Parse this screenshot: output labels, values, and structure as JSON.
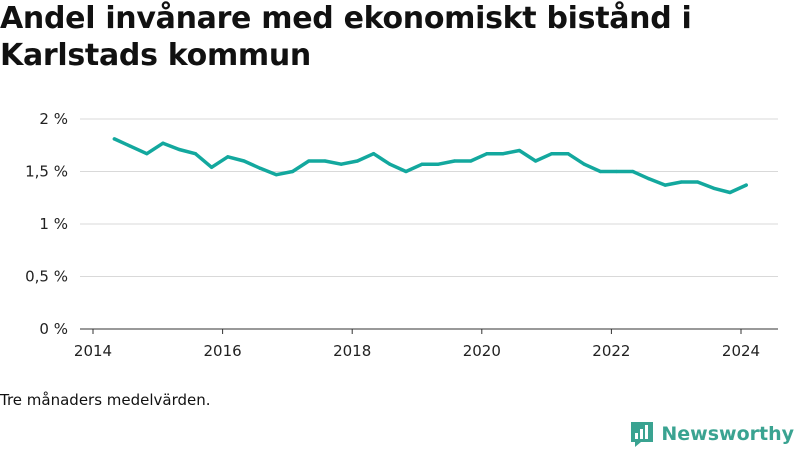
{
  "title": "Andel invånare med ekonomiskt bistånd i Karlstads kommun",
  "note": "Tre månaders medelvärden.",
  "brand": {
    "name": "Newsworthy",
    "color": "#3aa391"
  },
  "colors": {
    "line": "#13a89e",
    "grid": "#d9d9d9",
    "axis": "#333333"
  },
  "chart_data": {
    "type": "line",
    "title": "Andel invånare med ekonomiskt bistånd i Karlstads kommun",
    "xlabel": "",
    "ylabel": "",
    "xlim": [
      2014,
      2024.75
    ],
    "ylim": [
      0,
      2
    ],
    "x_ticks": [
      2014,
      2016,
      2018,
      2020,
      2022,
      2024
    ],
    "y_ticks": [
      {
        "value": 0,
        "label": "0 %"
      },
      {
        "value": 0.5,
        "label": "0,5 %"
      },
      {
        "value": 1,
        "label": "1 %"
      },
      {
        "value": 1.5,
        "label": "1,5 %"
      },
      {
        "value": 2,
        "label": "2 %"
      }
    ],
    "grid": true,
    "series": [
      {
        "values": [
          [
            2014.33,
            1.81
          ],
          [
            2014.58,
            1.74
          ],
          [
            2014.83,
            1.67
          ],
          [
            2015.08,
            1.77
          ],
          [
            2015.33,
            1.71
          ],
          [
            2015.58,
            1.67
          ],
          [
            2015.83,
            1.54
          ],
          [
            2016.08,
            1.64
          ],
          [
            2016.33,
            1.6
          ],
          [
            2016.58,
            1.53
          ],
          [
            2016.83,
            1.47
          ],
          [
            2017.08,
            1.5
          ],
          [
            2017.33,
            1.6
          ],
          [
            2017.58,
            1.6
          ],
          [
            2017.83,
            1.57
          ],
          [
            2018.08,
            1.6
          ],
          [
            2018.33,
            1.67
          ],
          [
            2018.58,
            1.57
          ],
          [
            2018.83,
            1.5
          ],
          [
            2019.08,
            1.57
          ],
          [
            2019.33,
            1.57
          ],
          [
            2019.58,
            1.6
          ],
          [
            2019.83,
            1.6
          ],
          [
            2020.08,
            1.67
          ],
          [
            2020.33,
            1.67
          ],
          [
            2020.58,
            1.7
          ],
          [
            2020.83,
            1.6
          ],
          [
            2021.08,
            1.67
          ],
          [
            2021.33,
            1.67
          ],
          [
            2021.58,
            1.57
          ],
          [
            2021.83,
            1.5
          ],
          [
            2022.08,
            1.5
          ],
          [
            2022.33,
            1.5
          ],
          [
            2022.58,
            1.43
          ],
          [
            2022.83,
            1.37
          ],
          [
            2023.08,
            1.4
          ],
          [
            2023.33,
            1.4
          ],
          [
            2023.58,
            1.34
          ],
          [
            2023.83,
            1.3
          ],
          [
            2024.08,
            1.37
          ]
        ]
      }
    ]
  }
}
